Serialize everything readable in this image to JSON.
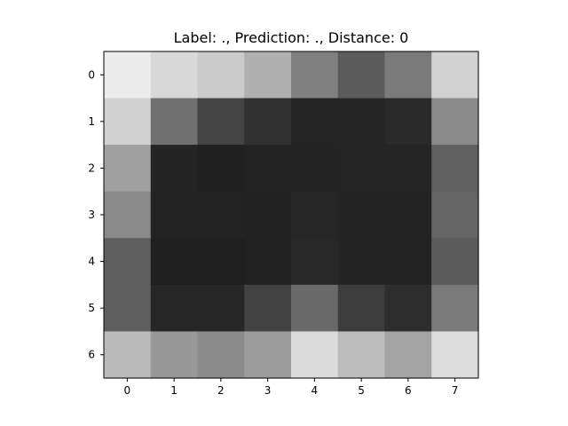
{
  "chart_data": {
    "type": "heatmap",
    "title": "Label: ., Prediction: ., Distance: 0",
    "xlabel": "",
    "ylabel": "",
    "colormap": "gray",
    "x_ticks": [
      "0",
      "1",
      "2",
      "3",
      "4",
      "5",
      "6",
      "7"
    ],
    "y_ticks": [
      "0",
      "1",
      "2",
      "3",
      "4",
      "5",
      "6"
    ],
    "values": [
      [
        236,
        216,
        203,
        176,
        128,
        92,
        122,
        210
      ],
      [
        209,
        112,
        67,
        49,
        37,
        37,
        42,
        138
      ],
      [
        160,
        36,
        32,
        35,
        36,
        37,
        37,
        96
      ],
      [
        137,
        34,
        34,
        33,
        38,
        35,
        35,
        100
      ],
      [
        94,
        31,
        31,
        33,
        40,
        35,
        35,
        92
      ],
      [
        94,
        38,
        38,
        66,
        106,
        60,
        45,
        122
      ],
      [
        186,
        152,
        139,
        156,
        219,
        188,
        164,
        220
      ]
    ],
    "value_range": [
      0,
      255
    ],
    "grid": false
  }
}
